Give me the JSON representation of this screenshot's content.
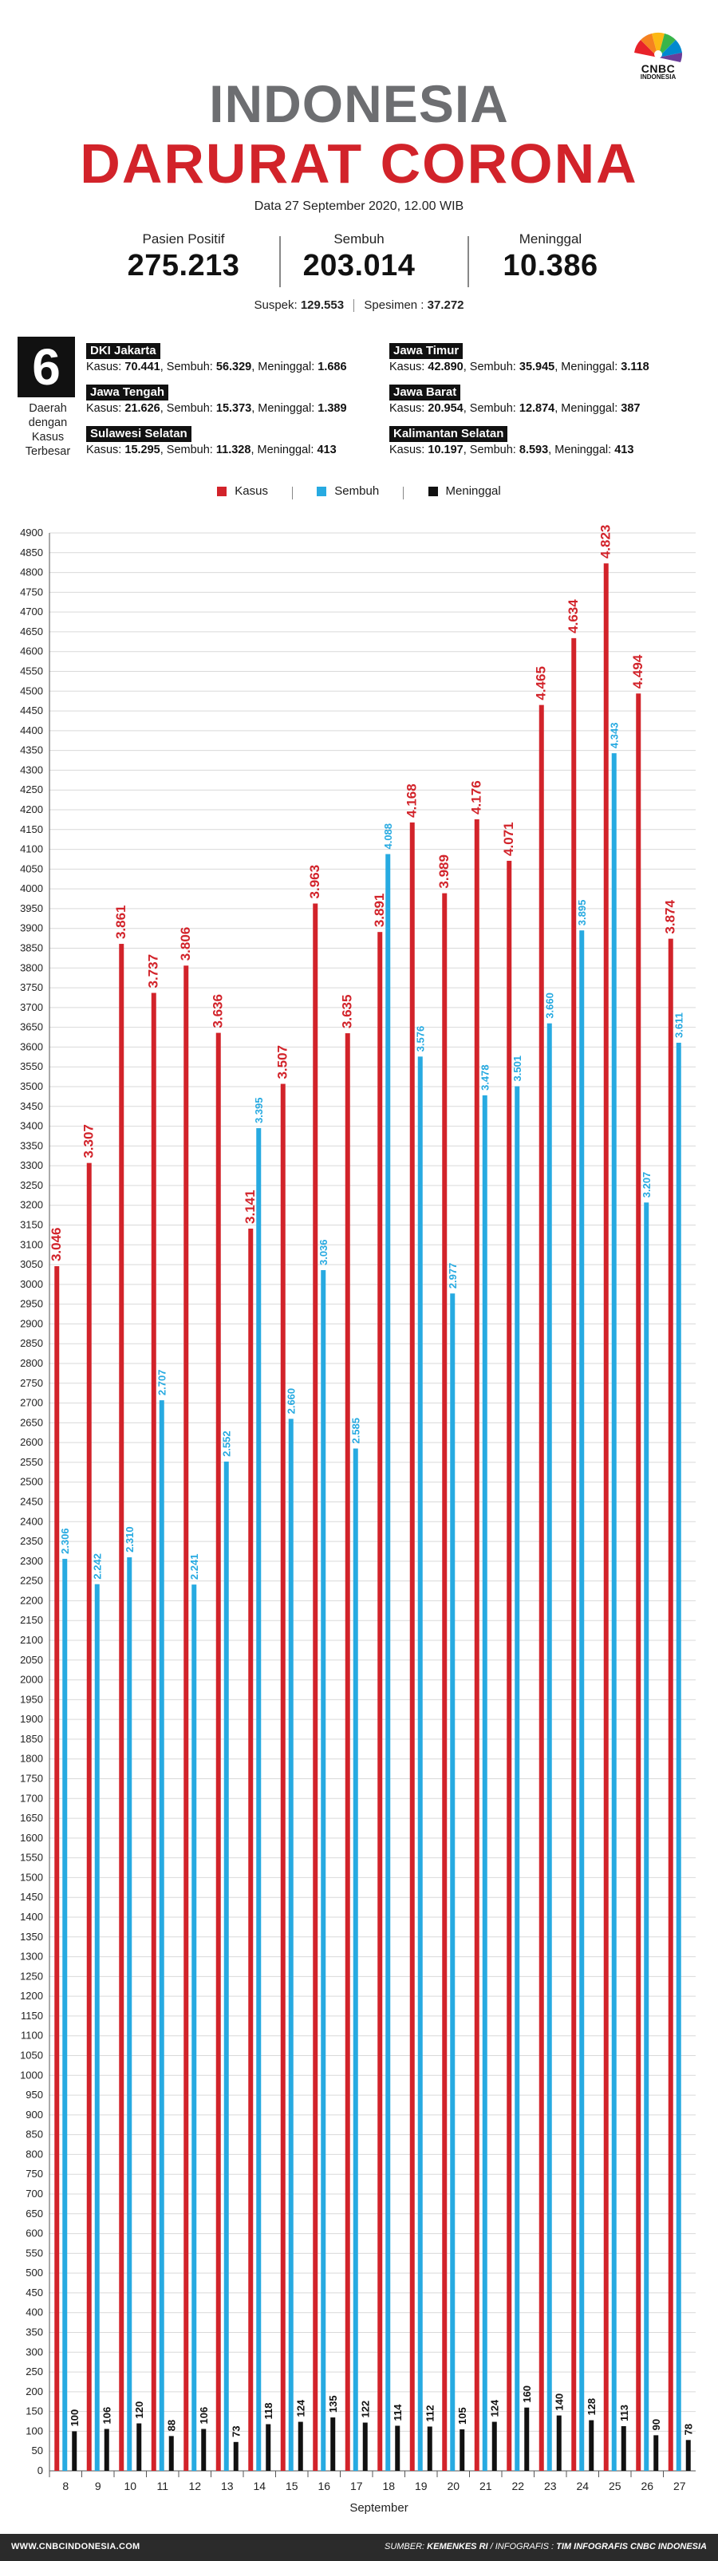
{
  "brand": {
    "logo_text": "CNBC",
    "logo_sub": "INDONESIA"
  },
  "header": {
    "title_line1": "INDONESIA",
    "title_line2": "DARURAT CORONA",
    "date": "Data 27 September 2020, 12.00 WIB"
  },
  "stats": [
    {
      "label": "Pasien Positif",
      "value": "275.213"
    },
    {
      "label": "Sembuh",
      "value": "203.014"
    },
    {
      "label": "Meninggal",
      "value": "10.386"
    }
  ],
  "suspek": {
    "label": "Suspek:",
    "value": "129.553",
    "specimen_label": "Spesimen :",
    "specimen_value": "37.272"
  },
  "regions": {
    "count": "6",
    "caption": "Daerah dengan Kasus Terbesar",
    "items": [
      {
        "name": "DKI Jakarta",
        "kasus": "70.441",
        "sembuh": "56.329",
        "meninggal": "1.686"
      },
      {
        "name": "Jawa Timur",
        "kasus": "42.890",
        "sembuh": "35.945",
        "meninggal": "3.118"
      },
      {
        "name": "Jawa Tengah",
        "kasus": "21.626",
        "sembuh": "15.373",
        "meninggal": "1.389"
      },
      {
        "name": "Jawa Barat",
        "kasus": "20.954",
        "sembuh": "12.874",
        "meninggal": "387"
      },
      {
        "name": "Sulawesi Selatan",
        "kasus": "15.295",
        "sembuh": "11.328",
        "meninggal": "413"
      },
      {
        "name": "Kalimantan Selatan",
        "kasus": "10.197",
        "sembuh": "8.593",
        "meninggal": "413"
      }
    ],
    "labels": {
      "kasus": "Kasus:",
      "sembuh": "Sembuh:",
      "meninggal": "Meninggal:"
    }
  },
  "legend": [
    "Kasus",
    "Sembuh",
    "Meninggal"
  ],
  "colors": {
    "kasus": "#d2232a",
    "sembuh": "#27aae1",
    "meninggal": "#111111",
    "grid": "#d9d9d9"
  },
  "chart_data": {
    "type": "bar",
    "xlabel": "September",
    "ylabel": "",
    "ylim": [
      0,
      4900
    ],
    "ytick_step": 50,
    "categories": [
      "8",
      "9",
      "10",
      "11",
      "12",
      "13",
      "14",
      "15",
      "16",
      "17",
      "18",
      "19",
      "20",
      "21",
      "22",
      "23",
      "24",
      "25",
      "26",
      "27"
    ],
    "series": [
      {
        "name": "Kasus",
        "values": [
          3046,
          3307,
          3861,
          3737,
          3806,
          3636,
          3141,
          3507,
          3963,
          3635,
          3891,
          4168,
          3989,
          4176,
          4071,
          4465,
          4634,
          4823,
          4494,
          3874
        ],
        "labels": [
          "3.046",
          "3.307",
          "3.861",
          "3.737",
          "3.806",
          "3.636",
          "3.141",
          "3.507",
          "3.963",
          "3.635",
          "3.891",
          "4.168",
          "3.989",
          "4.176",
          "4.071",
          "4.465",
          "4.634",
          "4.823",
          "4.494",
          "3.874"
        ]
      },
      {
        "name": "Sembuh",
        "values": [
          2306,
          2242,
          2310,
          2707,
          2241,
          2552,
          3395,
          2660,
          3036,
          2585,
          4088,
          3576,
          2977,
          3478,
          3501,
          3660,
          3895,
          4343,
          3207,
          3611
        ],
        "labels": [
          "2.306",
          "2.242",
          "2.310",
          "2.707",
          "2.241",
          "2.552",
          "3.395",
          "2.660",
          "3.036",
          "2.585",
          "4.088",
          "3.576",
          "2.977",
          "3.478",
          "3.501",
          "3.660",
          "3.895",
          "4.343",
          "3.207",
          "3.611"
        ]
      },
      {
        "name": "Meninggal",
        "values": [
          100,
          106,
          120,
          88,
          106,
          73,
          118,
          124,
          135,
          122,
          114,
          112,
          105,
          124,
          160,
          140,
          128,
          113,
          90,
          78
        ],
        "labels": [
          "100",
          "106",
          "120",
          "88",
          "106",
          "73",
          "118",
          "124",
          "135",
          "122",
          "114",
          "112",
          "105",
          "124",
          "160",
          "140",
          "128",
          "113",
          "90",
          "78"
        ]
      }
    ]
  },
  "footer": {
    "website": "WWW.CNBCINDONESIA.COM",
    "source_label": "SUMBER:",
    "source": "KEMENKES RI",
    "credit_label": "/ INFOGRAFIS :",
    "credit": "TIM INFOGRAFIS CNBC INDONESIA"
  }
}
